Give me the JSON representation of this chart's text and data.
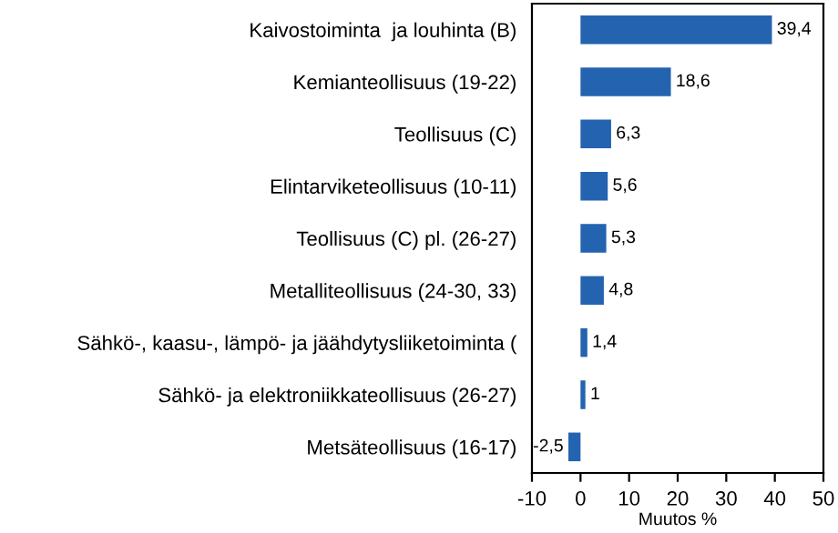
{
  "chart_data": {
    "type": "bar",
    "orientation": "horizontal",
    "categories": [
      "Kaivostoiminta  ja louhinta (B)",
      "Kemianteollisuus (19-22)",
      "Teollisuus (C)",
      "Elintarviketeollisuus (10-11)",
      "Teollisuus (C) pl. (26-27)",
      "Metalliteollisuus (24-30, 33)",
      "Sähkö-, kaasu-, lämpö- ja jäähdytysliiketoiminta (",
      "Sähkö- ja elektroniikkateollisuus (26-27)",
      "Metsäteollisuus (16-17)"
    ],
    "values": [
      39.4,
      18.6,
      6.3,
      5.6,
      5.3,
      4.8,
      1.4,
      1,
      -2.5
    ],
    "value_labels": [
      "39,4",
      "18,6",
      "6,3",
      "5,6",
      "5,3",
      "4,8",
      "1,4",
      "1",
      "-2,5"
    ],
    "color": "#2463b0",
    "xlim": [
      -10,
      50
    ],
    "xticks": [
      -10,
      0,
      10,
      20,
      30,
      40,
      50
    ],
    "xlabel": "Muutos %"
  }
}
